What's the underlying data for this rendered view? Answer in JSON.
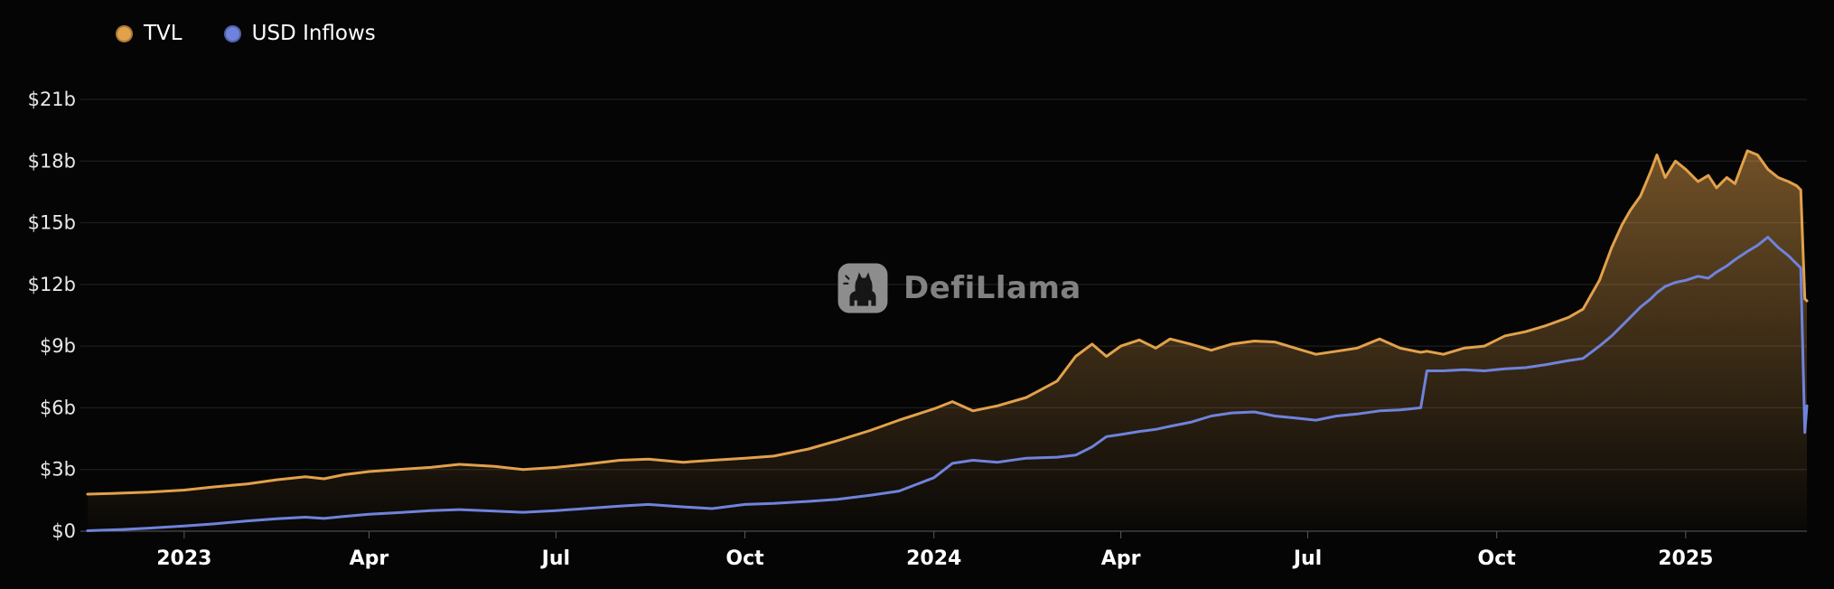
{
  "legend": {
    "tvl": "TVL",
    "usd_inflows": "USD Inflows"
  },
  "watermark": {
    "text": "DefiLlama"
  },
  "colors": {
    "tvl": "#e2a14b",
    "usd_inflows": "#6f83dc",
    "background": "#050505",
    "grid": "#242424",
    "axis_line": "#5a5a5a",
    "tick_text": "#e8e8e8",
    "x_label_text": "#ffffff",
    "watermark": "#8f8f8f"
  },
  "chart_data": {
    "type": "area",
    "title": "",
    "xlabel": "",
    "ylabel": "",
    "y_unit": "billions USD",
    "ylim": [
      0,
      21
    ],
    "grid": true,
    "legend_position": "top-left",
    "x": [
      "2022-11-15",
      "2022-12-01",
      "2022-12-15",
      "2023-01-01",
      "2023-01-15",
      "2023-02-01",
      "2023-02-15",
      "2023-03-01",
      "2023-03-10",
      "2023-03-20",
      "2023-04-01",
      "2023-04-15",
      "2023-05-01",
      "2023-05-15",
      "2023-06-01",
      "2023-06-15",
      "2023-07-01",
      "2023-07-15",
      "2023-08-01",
      "2023-08-15",
      "2023-09-01",
      "2023-09-15",
      "2023-10-01",
      "2023-10-15",
      "2023-11-01",
      "2023-11-15",
      "2023-12-01",
      "2023-12-15",
      "2024-01-01",
      "2024-01-10",
      "2024-01-20",
      "2024-02-01",
      "2024-02-15",
      "2024-03-01",
      "2024-03-10",
      "2024-03-18",
      "2024-03-25",
      "2024-04-01",
      "2024-04-10",
      "2024-04-18",
      "2024-04-25",
      "2024-05-05",
      "2024-05-15",
      "2024-05-25",
      "2024-06-05",
      "2024-06-15",
      "2024-06-25",
      "2024-07-05",
      "2024-07-15",
      "2024-07-25",
      "2024-08-05",
      "2024-08-15",
      "2024-08-25",
      "2024-08-28",
      "2024-09-05",
      "2024-09-15",
      "2024-09-25",
      "2024-10-05",
      "2024-10-15",
      "2024-10-25",
      "2024-11-05",
      "2024-11-12",
      "2024-11-20",
      "2024-11-26",
      "2024-12-01",
      "2024-12-05",
      "2024-12-10",
      "2024-12-15",
      "2024-12-18",
      "2024-12-22",
      "2024-12-27",
      "2025-01-01",
      "2025-01-07",
      "2025-01-12",
      "2025-01-16",
      "2025-01-21",
      "2025-01-25",
      "2025-01-31",
      "2025-02-05",
      "2025-02-10",
      "2025-02-15",
      "2025-02-20",
      "2025-02-24",
      "2025-02-26",
      "2025-02-28",
      "2025-03-01"
    ],
    "series": [
      {
        "name": "TVL",
        "color_key": "tvl",
        "fill": true,
        "values": [
          1.8,
          1.85,
          1.9,
          2.0,
          2.15,
          2.3,
          2.5,
          2.65,
          2.55,
          2.75,
          2.9,
          3.0,
          3.1,
          3.25,
          3.15,
          3.0,
          3.1,
          3.25,
          3.45,
          3.5,
          3.35,
          3.45,
          3.55,
          3.65,
          4.0,
          4.4,
          4.9,
          5.4,
          5.95,
          6.3,
          5.85,
          6.1,
          6.5,
          7.3,
          8.5,
          9.1,
          8.5,
          9.0,
          9.3,
          8.9,
          9.35,
          9.1,
          8.8,
          9.1,
          9.25,
          9.2,
          8.9,
          8.6,
          8.75,
          8.9,
          9.35,
          8.9,
          8.7,
          8.75,
          8.6,
          8.9,
          9.0,
          9.5,
          9.7,
          10.0,
          10.4,
          10.8,
          12.2,
          13.8,
          14.9,
          15.6,
          16.3,
          17.5,
          18.3,
          17.2,
          18.0,
          17.6,
          17.0,
          17.3,
          16.7,
          17.2,
          16.9,
          18.5,
          18.3,
          17.6,
          17.2,
          17.0,
          16.8,
          16.6,
          11.3,
          11.2
        ]
      },
      {
        "name": "USD Inflows",
        "color_key": "usd_inflows",
        "fill": false,
        "values": [
          0.02,
          0.08,
          0.15,
          0.25,
          0.35,
          0.5,
          0.6,
          0.68,
          0.62,
          0.72,
          0.82,
          0.9,
          1.0,
          1.05,
          0.98,
          0.92,
          1.0,
          1.1,
          1.22,
          1.3,
          1.18,
          1.1,
          1.3,
          1.35,
          1.45,
          1.55,
          1.75,
          1.95,
          2.6,
          3.3,
          3.45,
          3.35,
          3.55,
          3.6,
          3.7,
          4.1,
          4.6,
          4.7,
          4.85,
          4.95,
          5.1,
          5.3,
          5.6,
          5.75,
          5.8,
          5.6,
          5.5,
          5.4,
          5.6,
          5.7,
          5.85,
          5.9,
          6.0,
          7.8,
          7.8,
          7.85,
          7.8,
          7.9,
          7.95,
          8.1,
          8.3,
          8.4,
          9.0,
          9.5,
          10.0,
          10.4,
          10.9,
          11.3,
          11.6,
          11.9,
          12.1,
          12.2,
          12.4,
          12.3,
          12.6,
          12.9,
          13.2,
          13.6,
          13.9,
          14.3,
          13.8,
          13.4,
          13.0,
          12.8,
          4.8,
          6.1
        ]
      }
    ],
    "y_ticks": [
      {
        "value": 0,
        "label": "$0"
      },
      {
        "value": 3,
        "label": "$3b"
      },
      {
        "value": 6,
        "label": "$6b"
      },
      {
        "value": 9,
        "label": "$9b"
      },
      {
        "value": 12,
        "label": "$12b"
      },
      {
        "value": 15,
        "label": "$15b"
      },
      {
        "value": 18,
        "label": "$18b"
      },
      {
        "value": 21,
        "label": "$21b"
      }
    ],
    "x_ticks": [
      {
        "date": "2023-01-01",
        "label": "2023"
      },
      {
        "date": "2023-04-01",
        "label": "Apr"
      },
      {
        "date": "2023-07-01",
        "label": "Jul"
      },
      {
        "date": "2023-10-01",
        "label": "Oct"
      },
      {
        "date": "2024-01-01",
        "label": "2024"
      },
      {
        "date": "2024-04-01",
        "label": "Apr"
      },
      {
        "date": "2024-07-01",
        "label": "Jul"
      },
      {
        "date": "2024-10-01",
        "label": "Oct"
      },
      {
        "date": "2025-01-01",
        "label": "2025"
      }
    ]
  }
}
